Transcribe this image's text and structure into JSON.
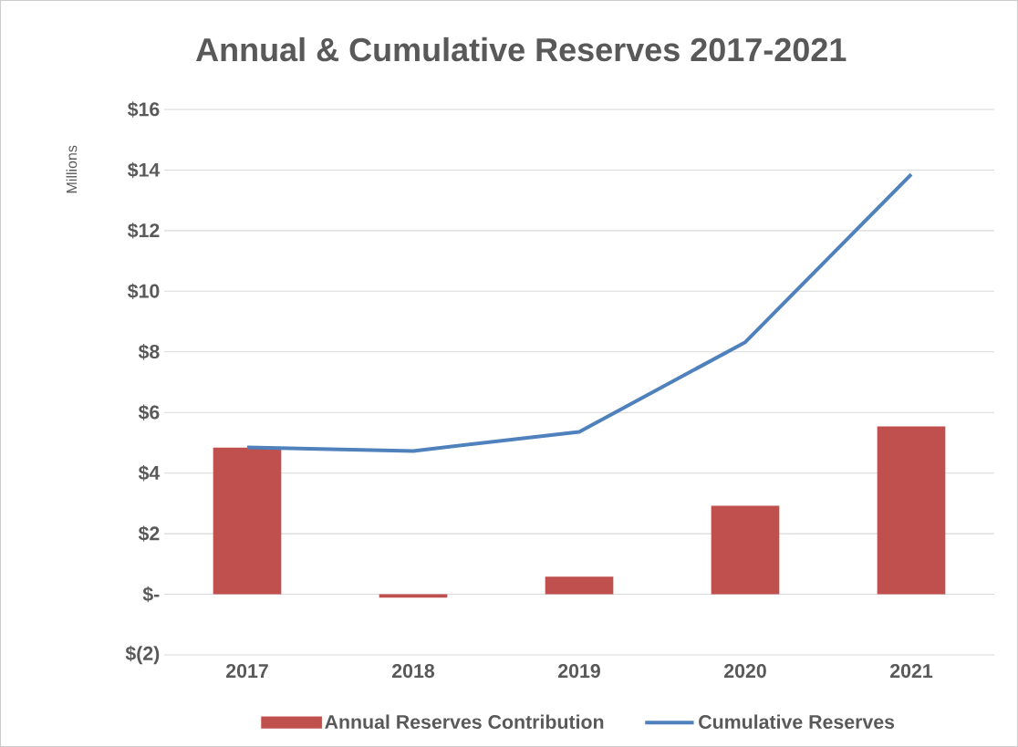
{
  "chart_data": {
    "type": "bar",
    "title": "Annual & Cumulative Reserves 2017-2021",
    "ylabel": "Millions",
    "categories": [
      "2017",
      "2018",
      "2019",
      "2020",
      "2021"
    ],
    "series": [
      {
        "name": "Annual Reserves Contribution",
        "color": "#c0504d",
        "values": [
          4.84,
          -0.11,
          0.58,
          2.92,
          5.54
        ]
      },
      {
        "name": "Cumulative Reserves",
        "type": "line",
        "color": "#4f81bd",
        "values": [
          4.85,
          4.73,
          5.36,
          8.32,
          13.86
        ]
      }
    ],
    "ylim": [
      -2,
      16
    ],
    "yticks": [
      {
        "value": -2,
        "label": "$(2)"
      },
      {
        "value": 0,
        "label": "$-"
      },
      {
        "value": 2,
        "label": "$2"
      },
      {
        "value": 4,
        "label": "$4"
      },
      {
        "value": 6,
        "label": "$6"
      },
      {
        "value": 8,
        "label": "$8"
      },
      {
        "value": 10,
        "label": "$10"
      },
      {
        "value": 12,
        "label": "$12"
      },
      {
        "value": 14,
        "label": "$14"
      },
      {
        "value": 16,
        "label": "$16"
      }
    ],
    "grid": "y",
    "legend": "bottom",
    "marker": "none",
    "line_style": "solid"
  }
}
